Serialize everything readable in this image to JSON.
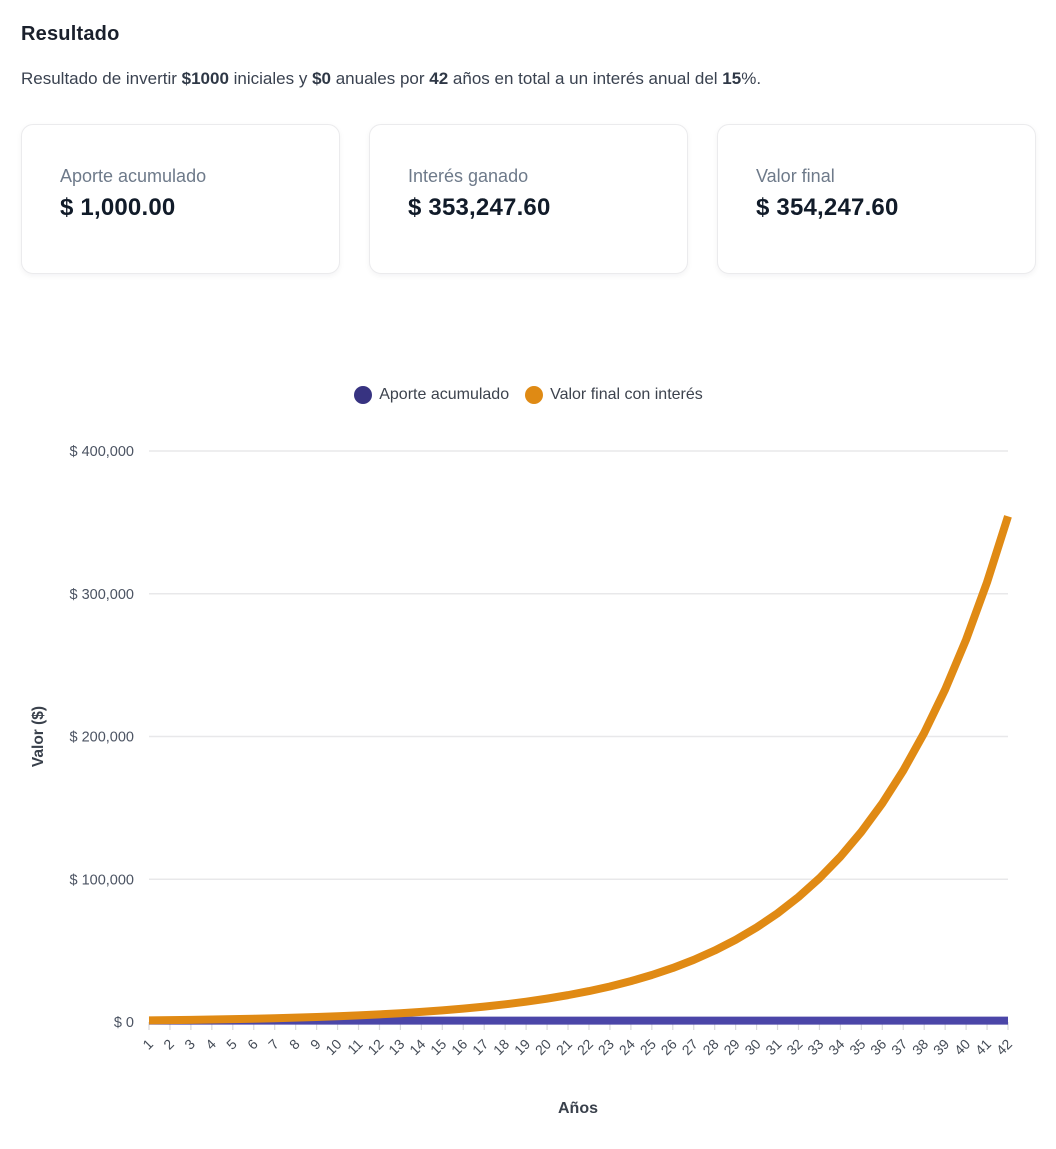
{
  "page": {
    "title": "Resultado",
    "background": "#ffffff"
  },
  "description": {
    "segments": [
      {
        "text": "Resultado de invertir ",
        "bold": false
      },
      {
        "text": "$1000",
        "bold": true
      },
      {
        "text": " iniciales y ",
        "bold": false
      },
      {
        "text": "$0",
        "bold": true
      },
      {
        "text": " anuales por ",
        "bold": false
      },
      {
        "text": "42",
        "bold": true
      },
      {
        "text": " años en total a un interés anual del ",
        "bold": false
      },
      {
        "text": "15",
        "bold": true
      },
      {
        "text": "%.",
        "bold": false
      }
    ]
  },
  "summary_cards": [
    {
      "label": "Aporte acumulado",
      "value": "$ 1,000.00"
    },
    {
      "label": "Interés ganado",
      "value": "$ 353,247.60"
    },
    {
      "label": "Valor final",
      "value": "$ 354,247.60"
    }
  ],
  "colors": {
    "indigo_line": "#4B46A8",
    "indigo_legend": "#373381",
    "orange_line": "#E08A14",
    "orange_legend": "#DF8A14",
    "gridline": "#e8e8ea",
    "tick": "#d9d9dc",
    "tick_text": "#454c57",
    "axis_title_text": "#39404b"
  },
  "chart_data": {
    "type": "line",
    "title": "",
    "xlabel": "Años",
    "ylabel": "Valor ($)",
    "legend_position": "top",
    "grid": true,
    "ylim": [
      0,
      400000
    ],
    "yticks": [
      {
        "value": 0,
        "label": "$ 0"
      },
      {
        "value": 100000,
        "label": "$ 100,000"
      },
      {
        "value": 200000,
        "label": "$ 200,000"
      },
      {
        "value": 300000,
        "label": "$ 300,000"
      },
      {
        "value": 400000,
        "label": "$ 400,000"
      }
    ],
    "x": [
      1,
      2,
      3,
      4,
      5,
      6,
      7,
      8,
      9,
      10,
      11,
      12,
      13,
      14,
      15,
      16,
      17,
      18,
      19,
      20,
      21,
      22,
      23,
      24,
      25,
      26,
      27,
      28,
      29,
      30,
      31,
      32,
      33,
      34,
      35,
      36,
      37,
      38,
      39,
      40,
      41,
      42
    ],
    "series": [
      {
        "name": "Aporte acumulado",
        "color": "#4B46A8",
        "legend_color": "#373381",
        "values": [
          1000,
          1000,
          1000,
          1000,
          1000,
          1000,
          1000,
          1000,
          1000,
          1000,
          1000,
          1000,
          1000,
          1000,
          1000,
          1000,
          1000,
          1000,
          1000,
          1000,
          1000,
          1000,
          1000,
          1000,
          1000,
          1000,
          1000,
          1000,
          1000,
          1000,
          1000,
          1000,
          1000,
          1000,
          1000,
          1000,
          1000,
          1000,
          1000,
          1000,
          1000,
          1000
        ]
      },
      {
        "name": "Valor final con interés",
        "color": "#E08A14",
        "legend_color": "#DF8A14",
        "values": [
          1150,
          1322.5,
          1520.88,
          1749.01,
          2011.36,
          2313.06,
          2660.02,
          3059.02,
          3517.88,
          4045.56,
          4652.39,
          5350.25,
          6152.79,
          7075.71,
          8137.06,
          9357.62,
          10761.26,
          12375.45,
          14231.77,
          16366.54,
          18821.52,
          21644.75,
          24891.46,
          28625.18,
          32918.95,
          37856.8,
          43535.31,
          50065.61,
          57575.45,
          66211.77,
          76143.54,
          87565.07,
          100699.83,
          115804.8,
          133175.52,
          153151.85,
          176124.63,
          202543.32,
          232924.82,
          267863.55,
          308043.08,
          354247.6
        ]
      }
    ]
  }
}
